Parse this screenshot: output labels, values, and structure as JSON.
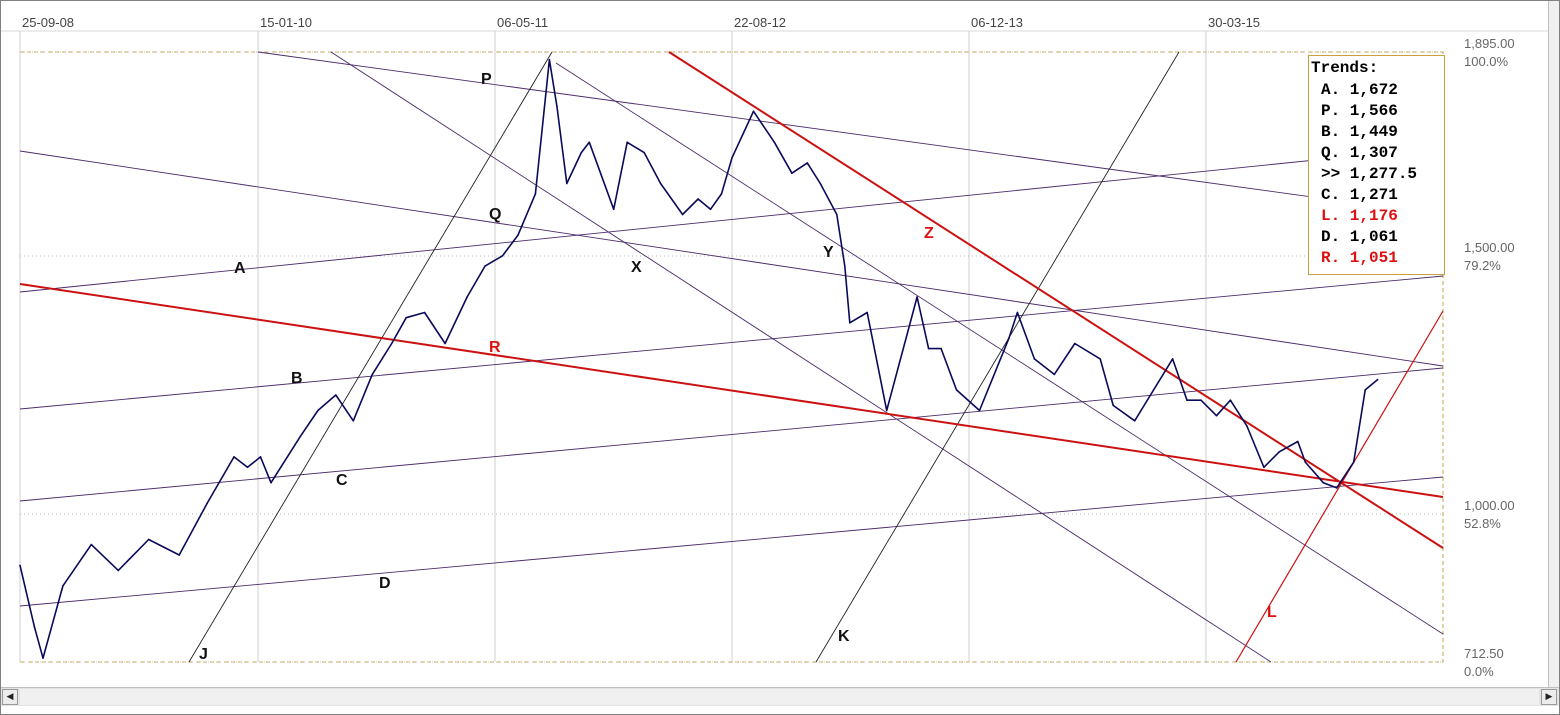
{
  "chart_data": {
    "type": "line",
    "title": "",
    "x_ticks": [
      "25-09-08",
      "15-01-10",
      "06-05-11",
      "22-08-12",
      "06-12-13",
      "30-03-15"
    ],
    "y_ticks": [
      {
        "price": "1,895.00",
        "pct": "100.0%"
      },
      {
        "price": "1,500.00",
        "pct": "79.2%"
      },
      {
        "price": "1,000.00",
        "pct": "52.8%"
      },
      {
        "price": "712.50",
        "pct": "0.0%"
      }
    ],
    "ylim": [
      712.5,
      1895
    ],
    "series": [
      {
        "color": "#0a0a5a",
        "x": [
          "2008-09-25",
          "2008-10-24",
          "2008-11-10",
          "2008-12-20",
          "2009-02-15",
          "2009-04-10",
          "2009-06-10",
          "2009-08-10",
          "2009-10-05",
          "2009-11-28",
          "2009-12-25",
          "2010-01-20",
          "2010-02-10",
          "2010-04-10",
          "2010-05-15",
          "2010-06-20",
          "2010-07-25",
          "2010-09-01",
          "2010-10-10",
          "2010-11-08",
          "2010-12-15",
          "2011-01-25",
          "2011-03-10",
          "2011-04-15",
          "2011-05-20",
          "2011-06-20",
          "2011-07-25",
          "2011-08-22",
          "2011-09-06",
          "2011-09-26",
          "2011-10-25",
          "2011-11-10",
          "2011-12-29",
          "2012-01-25",
          "2012-02-28",
          "2012-04-01",
          "2012-05-15",
          "2012-06-15",
          "2012-07-10",
          "2012-08-01",
          "2012-08-22",
          "2012-10-04",
          "2012-11-15",
          "2012-12-20",
          "2013-01-20",
          "2013-02-15",
          "2013-03-20",
          "2013-04-05",
          "2013-04-15",
          "2013-05-20",
          "2013-06-28",
          "2013-08-28",
          "2013-09-20",
          "2013-10-15",
          "2013-11-15",
          "2013-12-31",
          "2014-02-28",
          "2014-03-17",
          "2014-04-20",
          "2014-05-30",
          "2014-07-10",
          "2014-08-30",
          "2014-09-25",
          "2014-11-07",
          "2015-01-22",
          "2015-02-20",
          "2015-03-20",
          "2015-04-20",
          "2015-05-18",
          "2015-06-20",
          "2015-07-24",
          "2015-08-24",
          "2015-09-30",
          "2015-10-15",
          "2015-11-20",
          "2015-12-17",
          "2016-01-20",
          "2016-02-12",
          "2016-03-08"
        ],
        "y": [
          900,
          780,
          720,
          860,
          940,
          890,
          950,
          920,
          1020,
          1110,
          1090,
          1110,
          1060,
          1150,
          1200,
          1230,
          1180,
          1270,
          1330,
          1380,
          1390,
          1330,
          1420,
          1480,
          1500,
          1540,
          1620,
          1880,
          1790,
          1640,
          1700,
          1720,
          1590,
          1720,
          1700,
          1640,
          1580,
          1610,
          1590,
          1620,
          1690,
          1780,
          1720,
          1660,
          1680,
          1640,
          1580,
          1480,
          1370,
          1390,
          1200,
          1420,
          1320,
          1320,
          1240,
          1200,
          1340,
          1390,
          1300,
          1270,
          1330,
          1300,
          1210,
          1180,
          1300,
          1220,
          1220,
          1190,
          1220,
          1170,
          1090,
          1120,
          1140,
          1100,
          1060,
          1050,
          1100,
          1240,
          1260
        ]
      }
    ]
  },
  "trend_lines": [
    {
      "label": "A",
      "color": "#4a2a6a"
    },
    {
      "label": "P",
      "color": "#4a2a6a"
    },
    {
      "label": "B",
      "color": "#4a2a6a"
    },
    {
      "label": "Q",
      "color": "#4a2a6a"
    },
    {
      "label": "C",
      "color": "#4a2a6a"
    },
    {
      "label": "D",
      "color": "#4a2a6a"
    },
    {
      "label": "X",
      "color": "#4a2a6a"
    },
    {
      "label": "Y",
      "color": "#4a2a6a"
    },
    {
      "label": "J",
      "color": "#222222"
    },
    {
      "label": "K",
      "color": "#222222"
    },
    {
      "label": "R",
      "color": "#cc1111"
    },
    {
      "label": "Z",
      "color": "#cc1111"
    },
    {
      "label": "L",
      "color": "#cc1111"
    }
  ],
  "trends_box": {
    "title": "Trends:",
    "rows": [
      {
        "text": "A. 1,672",
        "color": "#000000"
      },
      {
        "text": "P. 1,566",
        "color": "#000000"
      },
      {
        "text": "B. 1,449",
        "color": "#000000"
      },
      {
        "text": "Q. 1,307",
        "color": "#000000"
      },
      {
        "text": ">> 1,277.5",
        "color": "#000000"
      },
      {
        "text": "C. 1,271",
        "color": "#000000"
      },
      {
        "text": "L. 1,176",
        "color": "#dd1111"
      },
      {
        "text": "D. 1,061",
        "color": "#000000"
      },
      {
        "text": "R. 1,051",
        "color": "#dd1111"
      }
    ]
  },
  "scrollbar": {
    "left_icon": "arrow-left-icon",
    "right_icon": "arrow-right-icon"
  }
}
